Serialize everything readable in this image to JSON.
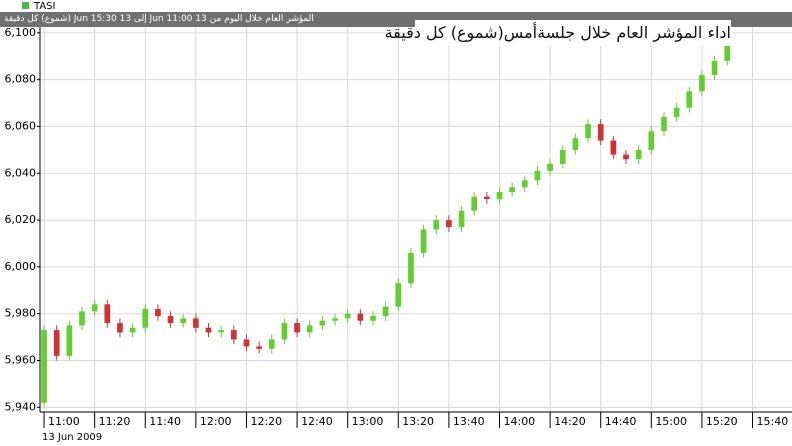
{
  "chart_data": {
    "type": "candlestick",
    "legend": "TASI",
    "header": "المؤشر العام خلال اليوم  من 13 Jun 11:00 إلى 13 Jun 15:30 (شموع) كل دقيقة",
    "annotation": "اداء المؤشر العام خلال جلسةأمس(شموع) كل دقيقة",
    "date_label": "13 Jun 2009",
    "up_color": "#66cc33",
    "down_color": "#cc3333",
    "legend_color": "#44bb44",
    "grid": true,
    "xlim": [
      658.4,
      955.6
    ],
    "ylim": [
      5938,
      6102.5
    ],
    "xticks": [
      {
        "value": 660,
        "label": "11:00"
      },
      {
        "value": 680,
        "label": "11:20"
      },
      {
        "value": 700,
        "label": "11:40"
      },
      {
        "value": 720,
        "label": "12:00"
      },
      {
        "value": 740,
        "label": "12:20"
      },
      {
        "value": 760,
        "label": "12:40"
      },
      {
        "value": 780,
        "label": "13:00"
      },
      {
        "value": 800,
        "label": "13:20"
      },
      {
        "value": 820,
        "label": "13:40"
      },
      {
        "value": 840,
        "label": "14:00"
      },
      {
        "value": 860,
        "label": "14:20"
      },
      {
        "value": 880,
        "label": "14:40"
      },
      {
        "value": 900,
        "label": "15:00"
      },
      {
        "value": 920,
        "label": "15:20"
      },
      {
        "value": 940,
        "label": "15:40"
      }
    ],
    "yticks": [
      {
        "value": 5940,
        "label": "5,940"
      },
      {
        "value": 5960,
        "label": "5,960"
      },
      {
        "value": 5980,
        "label": "5,980"
      },
      {
        "value": 6000,
        "label": "6,000"
      },
      {
        "value": 6020,
        "label": "6,020"
      },
      {
        "value": 6040,
        "label": "6,040"
      },
      {
        "value": 6060,
        "label": "6,060"
      },
      {
        "value": 6080,
        "label": "6,080"
      },
      {
        "value": 6100,
        "label": "6,100"
      }
    ],
    "x": [
      660,
      665,
      670,
      675,
      680,
      685,
      690,
      695,
      700,
      705,
      710,
      715,
      720,
      725,
      730,
      735,
      740,
      745,
      750,
      755,
      760,
      765,
      770,
      775,
      780,
      785,
      790,
      795,
      800,
      805,
      810,
      815,
      820,
      825,
      830,
      835,
      840,
      845,
      850,
      855,
      860,
      865,
      870,
      875,
      880,
      885,
      890,
      895,
      900,
      905,
      910,
      915,
      920,
      925,
      930
    ],
    "open": [
      5942,
      5973,
      5962,
      5975,
      5981,
      5984,
      5976,
      5972,
      5974,
      5982,
      5979,
      5976,
      5978,
      5974,
      5972,
      5973,
      5969,
      5966,
      5965,
      5969,
      5976,
      5972,
      5975,
      5977,
      5978,
      5980,
      5977,
      5979,
      5983,
      5993,
      6006,
      6016,
      6020,
      6017,
      6024,
      6030,
      6029,
      6032,
      6034,
      6037,
      6041,
      6044,
      6050,
      6055,
      6061,
      6054,
      6048,
      6046,
      6050,
      6058,
      6064,
      6068,
      6075,
      6082,
      6088
    ],
    "high": [
      5975,
      5975,
      5977,
      5983,
      5986,
      5986,
      5978,
      5976,
      5984,
      5984,
      5981,
      5980,
      5980,
      5976,
      5975,
      5975,
      5971,
      5968,
      5971,
      5978,
      5978,
      5977,
      5979,
      5980,
      5982,
      5982,
      5981,
      5985,
      5995,
      6008,
      6018,
      6022,
      6022,
      6026,
      6032,
      6032,
      6034,
      6036,
      6039,
      6043,
      6046,
      6052,
      6057,
      6063,
      6063,
      6056,
      6050,
      6052,
      6060,
      6066,
      6070,
      6077,
      6084,
      6090,
      6097
    ],
    "low": [
      5940,
      5960,
      5960,
      5973,
      5979,
      5974,
      5970,
      5970,
      5972,
      5977,
      5974,
      5974,
      5972,
      5970,
      5970,
      5967,
      5964,
      5963,
      5963,
      5967,
      5970,
      5970,
      5973,
      5975,
      5976,
      5975,
      5975,
      5977,
      5981,
      5991,
      6004,
      6014,
      6015,
      6015,
      6022,
      6027,
      6027,
      6030,
      6032,
      6035,
      6039,
      6042,
      6048,
      6053,
      6052,
      6046,
      6044,
      6044,
      6048,
      6056,
      6062,
      6066,
      6073,
      6080,
      6086
    ],
    "close": [
      5973,
      5962,
      5975,
      5981,
      5984,
      5976,
      5972,
      5974,
      5982,
      5979,
      5976,
      5978,
      5974,
      5972,
      5973,
      5969,
      5966,
      5965,
      5969,
      5976,
      5972,
      5975,
      5977,
      5978,
      5980,
      5977,
      5979,
      5983,
      5993,
      6006,
      6016,
      6020,
      6017,
      6024,
      6030,
      6029,
      6032,
      6034,
      6037,
      6041,
      6044,
      6050,
      6055,
      6061,
      6054,
      6048,
      6046,
      6050,
      6058,
      6064,
      6068,
      6075,
      6082,
      6088,
      6095
    ]
  }
}
